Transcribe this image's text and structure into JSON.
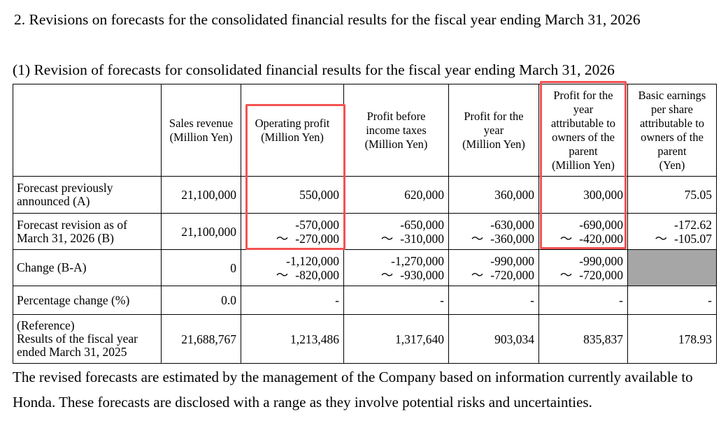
{
  "section_title": "2.  Revisions on forecasts for the consolidated financial results for the fiscal year ending March 31, 2026",
  "subsection_title": "(1) Revision of forecasts for consolidated financial results for the fiscal year ending March 31, 2026",
  "table": {
    "headers": [
      "Sales revenue\n(Million Yen)",
      "Operating profit\n(Million Yen)",
      "Profit before\nincome taxes\n(Million Yen)",
      "Profit for the\nyear\n(Million Yen)",
      "Profit for the\nyear\nattributable to\nowners of the\nparent\n(Million Yen)",
      "Basic earnings\nper share\nattributable to\nowners of the\nparent\n(Yen)"
    ],
    "rows": [
      {
        "label": "Forecast previously announced (A)",
        "cells": [
          "21,100,000",
          "550,000",
          "620,000",
          "360,000",
          "300,000",
          "75.05"
        ]
      },
      {
        "label": "Forecast revision as of March 31, 2026 (B)",
        "cells": [
          "21,100,000",
          [
            "-570,000",
            "-270,000"
          ],
          [
            "-650,000",
            "-310,000"
          ],
          [
            "-630,000",
            "-360,000"
          ],
          [
            "-690,000",
            "-420,000"
          ],
          [
            "-172.62",
            "-105.07"
          ]
        ]
      },
      {
        "label": "Change (B-A)",
        "cells": [
          "0",
          [
            "-1,120,000",
            "-820,000"
          ],
          [
            "-1,270,000",
            "-930,000"
          ],
          [
            "-990,000",
            "-720,000"
          ],
          [
            "-990,000",
            "-720,000"
          ],
          ""
        ]
      },
      {
        "label": "Percentage change (%)",
        "cells": [
          "0.0",
          "-",
          "-",
          "-",
          "-",
          "-"
        ]
      },
      {
        "label_lines": [
          "(Reference)",
          "Results of the fiscal year",
          "ended March 31, 2025"
        ],
        "cells": [
          "21,688,767",
          "1,213,486",
          "1,317,640",
          "903,034",
          "835,837",
          "178.93"
        ]
      }
    ],
    "range_symbol": "～"
  },
  "highlight_color": "#f35252",
  "note": "The revised forecasts are estimated by the management of the Company based on information currently available to Honda. These forecasts are disclosed with a range as they involve potential risks and uncertainties."
}
